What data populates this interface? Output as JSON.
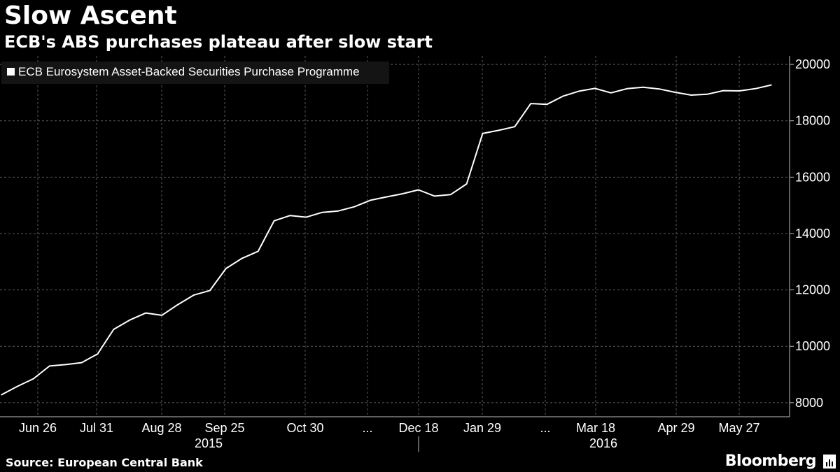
{
  "header": {
    "title": "Slow Ascent",
    "subtitle": "ECB's ABS purchases plateau after slow start"
  },
  "footer": {
    "source": "Source: European Central Bank",
    "brand": "Bloomberg",
    "brand_icon": "bloomberg-terminal-icon"
  },
  "colors": {
    "background": "#000000",
    "line": "#ffffff",
    "grid": "#5a5a5a"
  },
  "chart_data": {
    "type": "line",
    "title": "Slow Ascent",
    "subtitle": "ECB's ABS purchases plateau after slow start",
    "legend": {
      "placement": "top-left",
      "entries": [
        "ECB Eurosystem Asset-Backed Securities Purchase Programme"
      ]
    },
    "grid": true,
    "y_axis": {
      "side": "right",
      "ylim": [
        7500,
        20300
      ],
      "ticks": [
        8000,
        10000,
        12000,
        14000,
        16000,
        18000,
        20000
      ]
    },
    "x_axis": {
      "tick_labels": [
        "Jun 26",
        "Jul 31",
        "Aug 28",
        "Sep 25",
        "Oct 30",
        "...",
        "Dec 18",
        "Jan 29",
        "...",
        "Mar 18",
        "Apr 29",
        "May 27"
      ],
      "years": [
        "2015",
        "2016"
      ]
    },
    "series": [
      {
        "name": "ECB Eurosystem Asset-Backed Securities Purchase Programme",
        "points": [
          [
            "2015-06-12",
            8280
          ],
          [
            "2015-06-19",
            8580
          ],
          [
            "2015-06-26",
            8850
          ],
          [
            "2015-07-03",
            9300
          ],
          [
            "2015-07-10",
            9350
          ],
          [
            "2015-07-17",
            9420
          ],
          [
            "2015-07-24",
            9730
          ],
          [
            "2015-07-31",
            10600
          ],
          [
            "2015-08-07",
            10930
          ],
          [
            "2015-08-14",
            11180
          ],
          [
            "2015-08-21",
            11100
          ],
          [
            "2015-08-28",
            11480
          ],
          [
            "2015-09-04",
            11820
          ],
          [
            "2015-09-11",
            11980
          ],
          [
            "2015-09-18",
            12760
          ],
          [
            "2015-09-25",
            13120
          ],
          [
            "2015-10-02",
            13370
          ],
          [
            "2015-10-09",
            14450
          ],
          [
            "2015-10-16",
            14640
          ],
          [
            "2015-10-23",
            14580
          ],
          [
            "2015-10-30",
            14750
          ],
          [
            "2015-11-06",
            14800
          ],
          [
            "2015-11-13",
            14950
          ],
          [
            "2015-11-20",
            15180
          ],
          [
            "2015-11-27",
            15300
          ],
          [
            "2015-12-04",
            15410
          ],
          [
            "2015-12-11",
            15550
          ],
          [
            "2015-12-18",
            15330
          ],
          [
            "2015-12-25",
            15380
          ],
          [
            "2016-01-01",
            15760
          ],
          [
            "2016-01-08",
            17550
          ],
          [
            "2016-01-15",
            17660
          ],
          [
            "2016-01-22",
            17790
          ],
          [
            "2016-01-29",
            18610
          ],
          [
            "2016-02-05",
            18580
          ],
          [
            "2016-02-12",
            18870
          ],
          [
            "2016-02-19",
            19050
          ],
          [
            "2016-02-26",
            19150
          ],
          [
            "2016-03-04",
            18990
          ],
          [
            "2016-03-11",
            19140
          ],
          [
            "2016-03-18",
            19190
          ],
          [
            "2016-03-25",
            19130
          ],
          [
            "2016-04-01",
            19010
          ],
          [
            "2016-04-08",
            18910
          ],
          [
            "2016-04-15",
            18940
          ],
          [
            "2016-04-22",
            19070
          ],
          [
            "2016-04-29",
            19060
          ],
          [
            "2016-05-06",
            19140
          ],
          [
            "2016-05-13",
            19270
          ]
        ]
      }
    ]
  }
}
